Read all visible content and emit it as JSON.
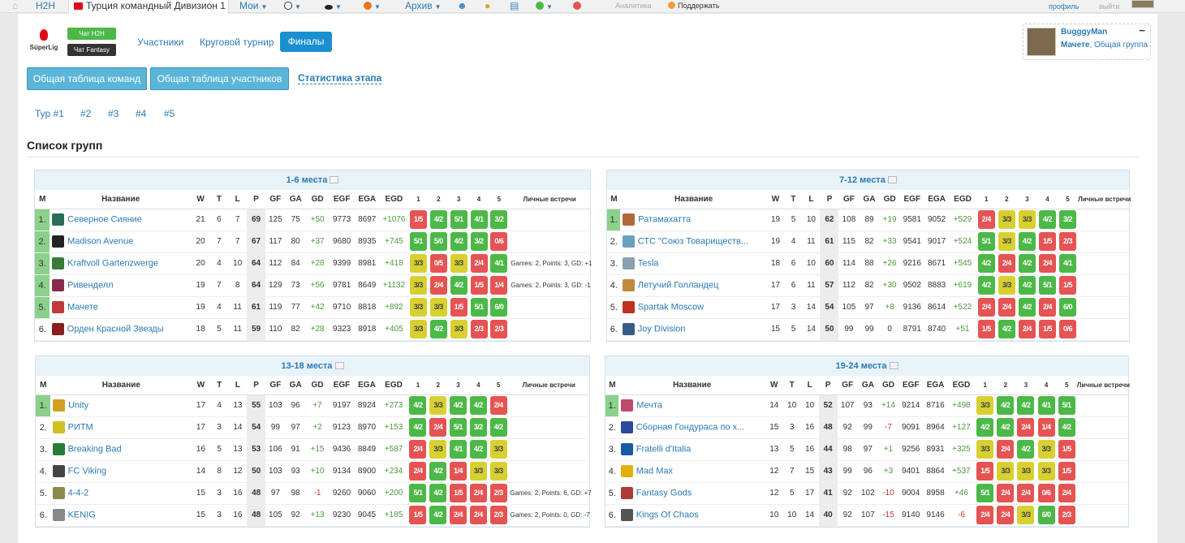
{
  "topbar": {
    "h2h": "H2H",
    "active_tab": "Турция командный Дивизион 1",
    "moi": "Мои",
    "archive": "Архив",
    "analytics": "Аналитика",
    "support": "Поддержать",
    "profile": "профиль",
    "logout": "выйти"
  },
  "header": {
    "logo_text": "SüperLig",
    "chat_h2h": "Чат H2H",
    "chat_fantasy": "Чат Fantasy",
    "nav": [
      "Участники",
      "Круговой турнир",
      "Финалы"
    ]
  },
  "user_box": {
    "name": "BugggyMan",
    "team": "Мачете",
    "group": "Общая группа",
    "collapse": "−"
  },
  "subnav": {
    "btn1": "Общая таблица команд",
    "btn2": "Общая таблица участников",
    "link": "Статистика этапа"
  },
  "rounds": [
    "Тур #1",
    "#2",
    "#3",
    "#4",
    "#5"
  ],
  "section_title": "Список групп",
  "columns": [
    "М",
    "Название",
    "W",
    "T",
    "L",
    "P",
    "GF",
    "GA",
    "GD",
    "EGF",
    "EGA",
    "EGD",
    "1",
    "2",
    "3",
    "4",
    "5",
    "Личные встречи"
  ],
  "colors": {
    "win": "#4cb848",
    "loss": "#e55353",
    "draw": "#d8d030",
    "link": "#2a7ab5",
    "qualify": "#8bd08b"
  },
  "groups": [
    {
      "title": "1-6 места",
      "rows": [
        {
          "m": "1.",
          "q": true,
          "name": "Северное Сияние",
          "w": "21",
          "t": "6",
          "l": "7",
          "p": "69",
          "gf": "125",
          "ga": "75",
          "gd": "+50",
          "egf": "9773",
          "ega": "8697",
          "egd": "+1076",
          "r": [
            [
              "1/5",
              "r"
            ],
            [
              "4/2",
              "g"
            ],
            [
              "5/1",
              "g"
            ],
            [
              "4/1",
              "g"
            ],
            [
              "3/2",
              "g"
            ]
          ],
          "notes": ""
        },
        {
          "m": "2.",
          "q": true,
          "name": "Madison Avenue",
          "w": "20",
          "t": "7",
          "l": "7",
          "p": "67",
          "gf": "117",
          "ga": "80",
          "gd": "+37",
          "egf": "9680",
          "ega": "8935",
          "egd": "+745",
          "r": [
            [
              "5/1",
              "g"
            ],
            [
              "5/0",
              "g"
            ],
            [
              "4/2",
              "g"
            ],
            [
              "3/2",
              "g"
            ],
            [
              "0/6",
              "r"
            ]
          ],
          "notes": ""
        },
        {
          "m": "3.",
          "q": true,
          "name": "Kraftvoll Gartenzwerge",
          "w": "20",
          "t": "4",
          "l": "10",
          "p": "64",
          "gf": "112",
          "ga": "84",
          "gd": "+28",
          "egf": "9399",
          "ega": "8981",
          "egd": "+418",
          "r": [
            [
              "3/3",
              "y"
            ],
            [
              "0/5",
              "r"
            ],
            [
              "3/3",
              "y"
            ],
            [
              "2/4",
              "r"
            ],
            [
              "4/1",
              "g"
            ]
          ],
          "notes": "Games: 2, Points: 3, GD: +1"
        },
        {
          "m": "4.",
          "q": true,
          "name": "Ривенделл",
          "w": "19",
          "t": "7",
          "l": "8",
          "p": "64",
          "gf": "129",
          "ga": "73",
          "gd": "+56",
          "egf": "9781",
          "ega": "8649",
          "egd": "+1132",
          "r": [
            [
              "3/3",
              "y"
            ],
            [
              "2/4",
              "r"
            ],
            [
              "4/2",
              "g"
            ],
            [
              "1/5",
              "r"
            ],
            [
              "1/4",
              "r"
            ]
          ],
          "notes": "Games: 2, Points: 3, GD: -1"
        },
        {
          "m": "5.",
          "q": true,
          "name": "Мачете",
          "w": "19",
          "t": "4",
          "l": "11",
          "p": "61",
          "gf": "119",
          "ga": "77",
          "gd": "+42",
          "egf": "9710",
          "ega": "8818",
          "egd": "+892",
          "r": [
            [
              "3/3",
              "y"
            ],
            [
              "3/3",
              "y"
            ],
            [
              "1/5",
              "r"
            ],
            [
              "5/1",
              "g"
            ],
            [
              "6/0",
              "g"
            ]
          ],
          "notes": ""
        },
        {
          "m": "6.",
          "q": false,
          "name": "Орден Красной Звезды",
          "w": "18",
          "t": "5",
          "l": "11",
          "p": "59",
          "gf": "110",
          "ga": "82",
          "gd": "+28",
          "egf": "9323",
          "ega": "8918",
          "egd": "+405",
          "r": [
            [
              "3/3",
              "y"
            ],
            [
              "4/2",
              "g"
            ],
            [
              "3/3",
              "y"
            ],
            [
              "2/3",
              "r"
            ],
            [
              "2/3",
              "r"
            ]
          ],
          "notes": ""
        }
      ]
    },
    {
      "title": "7-12 места",
      "rows": [
        {
          "m": "1.",
          "q": true,
          "name": "Ратамахатта",
          "w": "19",
          "t": "5",
          "l": "10",
          "p": "62",
          "gf": "108",
          "ga": "89",
          "gd": "+19",
          "egf": "9581",
          "ega": "9052",
          "egd": "+529",
          "r": [
            [
              "2/4",
              "r"
            ],
            [
              "3/3",
              "y"
            ],
            [
              "3/3",
              "y"
            ],
            [
              "4/2",
              "g"
            ],
            [
              "3/2",
              "g"
            ]
          ],
          "notes": ""
        },
        {
          "m": "2.",
          "q": false,
          "name": "СТС \"Союз Товариществ...",
          "w": "19",
          "t": "4",
          "l": "11",
          "p": "61",
          "gf": "115",
          "ga": "82",
          "gd": "+33",
          "egf": "9541",
          "ega": "9017",
          "egd": "+524",
          "r": [
            [
              "5/1",
              "g"
            ],
            [
              "3/3",
              "y"
            ],
            [
              "4/2",
              "g"
            ],
            [
              "1/5",
              "r"
            ],
            [
              "2/3",
              "r"
            ]
          ],
          "notes": ""
        },
        {
          "m": "3.",
          "q": false,
          "name": "Tesla",
          "w": "18",
          "t": "6",
          "l": "10",
          "p": "60",
          "gf": "114",
          "ga": "88",
          "gd": "+26",
          "egf": "9216",
          "ega": "8671",
          "egd": "+545",
          "r": [
            [
              "4/2",
              "g"
            ],
            [
              "2/4",
              "r"
            ],
            [
              "4/2",
              "g"
            ],
            [
              "2/4",
              "r"
            ],
            [
              "4/1",
              "g"
            ]
          ],
          "notes": ""
        },
        {
          "m": "4.",
          "q": false,
          "name": "Летучий Голландец",
          "w": "17",
          "t": "6",
          "l": "11",
          "p": "57",
          "gf": "112",
          "ga": "82",
          "gd": "+30",
          "egf": "9502",
          "ega": "8883",
          "egd": "+619",
          "r": [
            [
              "4/2",
              "g"
            ],
            [
              "3/3",
              "y"
            ],
            [
              "4/2",
              "g"
            ],
            [
              "5/1",
              "g"
            ],
            [
              "1/5",
              "r"
            ]
          ],
          "notes": ""
        },
        {
          "m": "5.",
          "q": false,
          "name": "Spartak Moscow",
          "w": "17",
          "t": "3",
          "l": "14",
          "p": "54",
          "gf": "105",
          "ga": "97",
          "gd": "+8",
          "egf": "9136",
          "ega": "8614",
          "egd": "+522",
          "r": [
            [
              "2/4",
              "r"
            ],
            [
              "2/4",
              "r"
            ],
            [
              "4/2",
              "g"
            ],
            [
              "2/4",
              "r"
            ],
            [
              "6/0",
              "g"
            ]
          ],
          "notes": ""
        },
        {
          "m": "6.",
          "q": false,
          "name": "Joy Division",
          "w": "15",
          "t": "5",
          "l": "14",
          "p": "50",
          "gf": "99",
          "ga": "99",
          "gd": "0",
          "egf": "8791",
          "ega": "8740",
          "egd": "+51",
          "r": [
            [
              "1/5",
              "r"
            ],
            [
              "4/2",
              "g"
            ],
            [
              "2/4",
              "r"
            ],
            [
              "1/5",
              "r"
            ],
            [
              "0/6",
              "r"
            ]
          ],
          "notes": ""
        }
      ]
    },
    {
      "title": "13-18 места",
      "rows": [
        {
          "m": "1.",
          "q": true,
          "name": "Unity",
          "w": "17",
          "t": "4",
          "l": "13",
          "p": "55",
          "gf": "103",
          "ga": "96",
          "gd": "+7",
          "egf": "9197",
          "ega": "8924",
          "egd": "+273",
          "r": [
            [
              "4/2",
              "g"
            ],
            [
              "3/3",
              "y"
            ],
            [
              "4/2",
              "g"
            ],
            [
              "4/2",
              "g"
            ],
            [
              "2/4",
              "r"
            ]
          ],
          "notes": ""
        },
        {
          "m": "2.",
          "q": false,
          "name": "РИТМ",
          "w": "17",
          "t": "3",
          "l": "14",
          "p": "54",
          "gf": "99",
          "ga": "97",
          "gd": "+2",
          "egf": "9123",
          "ega": "8970",
          "egd": "+153",
          "r": [
            [
              "4/2",
              "g"
            ],
            [
              "2/4",
              "r"
            ],
            [
              "5/1",
              "g"
            ],
            [
              "3/2",
              "g"
            ],
            [
              "4/2",
              "g"
            ]
          ],
          "notes": ""
        },
        {
          "m": "3.",
          "q": false,
          "name": "Breaking Bad",
          "w": "16",
          "t": "5",
          "l": "13",
          "p": "53",
          "gf": "106",
          "ga": "91",
          "gd": "+15",
          "egf": "9436",
          "ega": "8849",
          "egd": "+587",
          "r": [
            [
              "2/4",
              "r"
            ],
            [
              "3/3",
              "y"
            ],
            [
              "4/1",
              "g"
            ],
            [
              "4/2",
              "g"
            ],
            [
              "3/3",
              "y"
            ]
          ],
          "notes": ""
        },
        {
          "m": "4.",
          "q": false,
          "name": "FC Viking",
          "w": "14",
          "t": "8",
          "l": "12",
          "p": "50",
          "gf": "103",
          "ga": "93",
          "gd": "+10",
          "egf": "9134",
          "ega": "8900",
          "egd": "+234",
          "r": [
            [
              "2/4",
              "r"
            ],
            [
              "4/2",
              "g"
            ],
            [
              "1/4",
              "r"
            ],
            [
              "3/3",
              "y"
            ],
            [
              "3/3",
              "y"
            ]
          ],
          "notes": ""
        },
        {
          "m": "5.",
          "q": false,
          "name": "4-4-2",
          "w": "15",
          "t": "3",
          "l": "16",
          "p": "48",
          "gf": "97",
          "ga": "98",
          "gd": "-1",
          "egf": "9260",
          "ega": "9060",
          "egd": "+200",
          "r": [
            [
              "5/1",
              "g"
            ],
            [
              "4/2",
              "g"
            ],
            [
              "1/5",
              "r"
            ],
            [
              "2/4",
              "r"
            ],
            [
              "2/3",
              "r"
            ]
          ],
          "notes": "Games: 2, Points: 6, GD: +7"
        },
        {
          "m": "6.",
          "q": false,
          "name": "KENIG",
          "w": "15",
          "t": "3",
          "l": "16",
          "p": "48",
          "gf": "105",
          "ga": "92",
          "gd": "+13",
          "egf": "9230",
          "ega": "9045",
          "egd": "+185",
          "r": [
            [
              "1/5",
              "r"
            ],
            [
              "4/2",
              "g"
            ],
            [
              "2/4",
              "r"
            ],
            [
              "2/4",
              "r"
            ],
            [
              "2/3",
              "r"
            ]
          ],
          "notes": "Games: 2, Points: 0, GD: -7"
        }
      ]
    },
    {
      "title": "19-24 места",
      "rows": [
        {
          "m": "1.",
          "q": true,
          "name": "Мечта",
          "w": "14",
          "t": "10",
          "l": "10",
          "p": "52",
          "gf": "107",
          "ga": "93",
          "gd": "+14",
          "egf": "9214",
          "ega": "8716",
          "egd": "+498",
          "r": [
            [
              "3/3",
              "y"
            ],
            [
              "4/2",
              "g"
            ],
            [
              "4/2",
              "g"
            ],
            [
              "4/1",
              "g"
            ],
            [
              "5/1",
              "g"
            ]
          ],
          "notes": ""
        },
        {
          "m": "2.",
          "q": false,
          "name": "Сборная Гондураса по х...",
          "w": "15",
          "t": "3",
          "l": "16",
          "p": "48",
          "gf": "92",
          "ga": "99",
          "gd": "-7",
          "egf": "9091",
          "ega": "8964",
          "egd": "+127",
          "r": [
            [
              "4/2",
              "g"
            ],
            [
              "4/2",
              "g"
            ],
            [
              "2/4",
              "r"
            ],
            [
              "1/4",
              "r"
            ],
            [
              "4/2",
              "g"
            ]
          ],
          "notes": ""
        },
        {
          "m": "3.",
          "q": false,
          "name": "Fratelli d'Italia",
          "w": "13",
          "t": "5",
          "l": "16",
          "p": "44",
          "gf": "98",
          "ga": "97",
          "gd": "+1",
          "egf": "9256",
          "ega": "8931",
          "egd": "+325",
          "r": [
            [
              "3/3",
              "y"
            ],
            [
              "2/4",
              "r"
            ],
            [
              "4/2",
              "g"
            ],
            [
              "3/3",
              "y"
            ],
            [
              "1/5",
              "r"
            ]
          ],
          "notes": ""
        },
        {
          "m": "4.",
          "q": false,
          "name": "Mad Max",
          "w": "12",
          "t": "7",
          "l": "15",
          "p": "43",
          "gf": "99",
          "ga": "96",
          "gd": "+3",
          "egf": "9401",
          "ega": "8864",
          "egd": "+537",
          "r": [
            [
              "1/5",
              "r"
            ],
            [
              "3/3",
              "y"
            ],
            [
              "3/3",
              "y"
            ],
            [
              "3/3",
              "y"
            ],
            [
              "1/5",
              "r"
            ]
          ],
          "notes": ""
        },
        {
          "m": "5.",
          "q": false,
          "name": "Fantasy Gods",
          "w": "12",
          "t": "5",
          "l": "17",
          "p": "41",
          "gf": "92",
          "ga": "102",
          "gd": "-10",
          "egf": "9004",
          "ega": "8958",
          "egd": "+46",
          "r": [
            [
              "5/1",
              "g"
            ],
            [
              "2/4",
              "r"
            ],
            [
              "2/4",
              "r"
            ],
            [
              "0/6",
              "r"
            ],
            [
              "2/4",
              "r"
            ]
          ],
          "notes": ""
        },
        {
          "m": "6.",
          "q": false,
          "name": "Kings Of Chaos",
          "w": "10",
          "t": "10",
          "l": "14",
          "p": "40",
          "gf": "92",
          "ga": "107",
          "gd": "-15",
          "egf": "9140",
          "ega": "9146",
          "egd": "-6",
          "r": [
            [
              "2/4",
              "r"
            ],
            [
              "2/4",
              "r"
            ],
            [
              "3/3",
              "y"
            ],
            [
              "6/0",
              "g"
            ],
            [
              "2/3",
              "r"
            ]
          ],
          "notes": ""
        }
      ]
    }
  ]
}
